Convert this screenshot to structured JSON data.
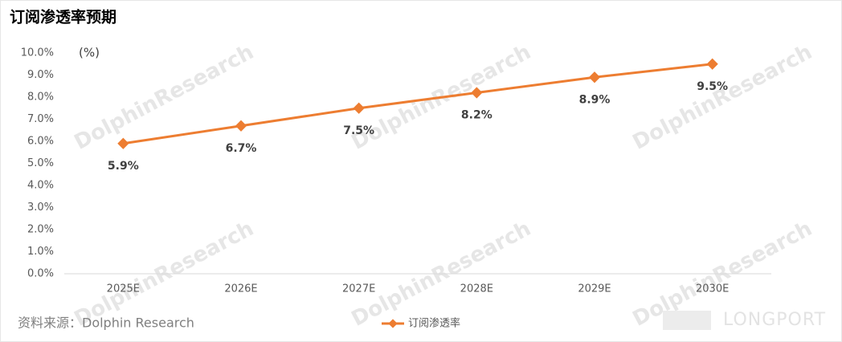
{
  "chart_data": {
    "type": "line",
    "title": "订阅渗透率预期",
    "unit": "(%)",
    "categories": [
      "2025E",
      "2026E",
      "2027E",
      "2028E",
      "2029E",
      "2030E"
    ],
    "series": [
      {
        "name": "订阅渗透率",
        "color": "#ed7d31",
        "values": [
          5.9,
          6.7,
          7.5,
          8.2,
          8.9,
          9.5
        ],
        "value_labels": [
          "5.9%",
          "6.7%",
          "7.5%",
          "8.2%",
          "8.9%",
          "9.5%"
        ]
      }
    ],
    "ylim": [
      0,
      10
    ],
    "yticks": [
      {
        "value": 0,
        "label": "0.0%"
      },
      {
        "value": 1,
        "label": "1.0%"
      },
      {
        "value": 2,
        "label": "2.0%"
      },
      {
        "value": 3,
        "label": "3.0%"
      },
      {
        "value": 4,
        "label": "4.0%"
      },
      {
        "value": 5,
        "label": "5.0%"
      },
      {
        "value": 6,
        "label": "6.0%"
      },
      {
        "value": 7,
        "label": "7.0%"
      },
      {
        "value": 8,
        "label": "8.0%"
      },
      {
        "value": 9,
        "label": "9.0%"
      },
      {
        "value": 10,
        "label": "10.0%"
      }
    ],
    "grid": false,
    "legend": "bottom"
  },
  "source": "资料来源：Dolphin Research",
  "watermark": "DolphinResearch",
  "logo": "LONGPORT"
}
